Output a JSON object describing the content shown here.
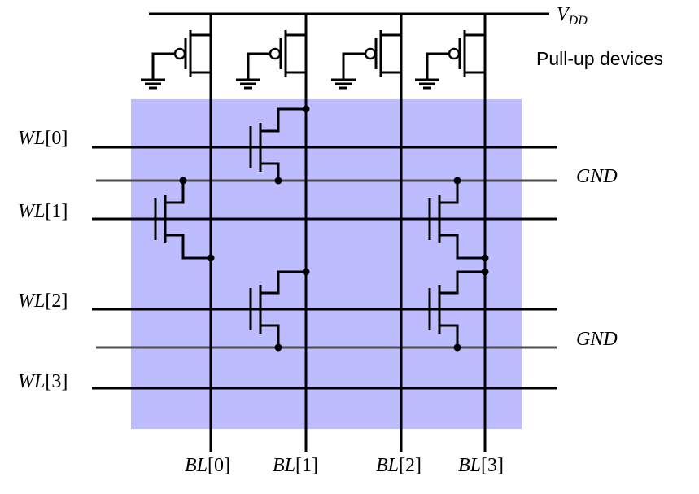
{
  "supply": {
    "name": "V",
    "sub": "DD"
  },
  "pullup_label": "Pull-up devices",
  "ground_label": "GND",
  "word_lines": [
    {
      "name": "WL",
      "index": "[0]"
    },
    {
      "name": "WL",
      "index": "[1]"
    },
    {
      "name": "WL",
      "index": "[2]"
    },
    {
      "name": "WL",
      "index": "[3]"
    }
  ],
  "bit_lines": [
    {
      "name": "BL",
      "index": "[0]"
    },
    {
      "name": "BL",
      "index": "[1]"
    },
    {
      "name": "BL",
      "index": "[2]"
    },
    {
      "name": "BL",
      "index": "[3]"
    }
  ],
  "colors": {
    "array_fill": "#bcbcff",
    "wire": "#000000",
    "gnd_wire": "#4d4d4d"
  }
}
